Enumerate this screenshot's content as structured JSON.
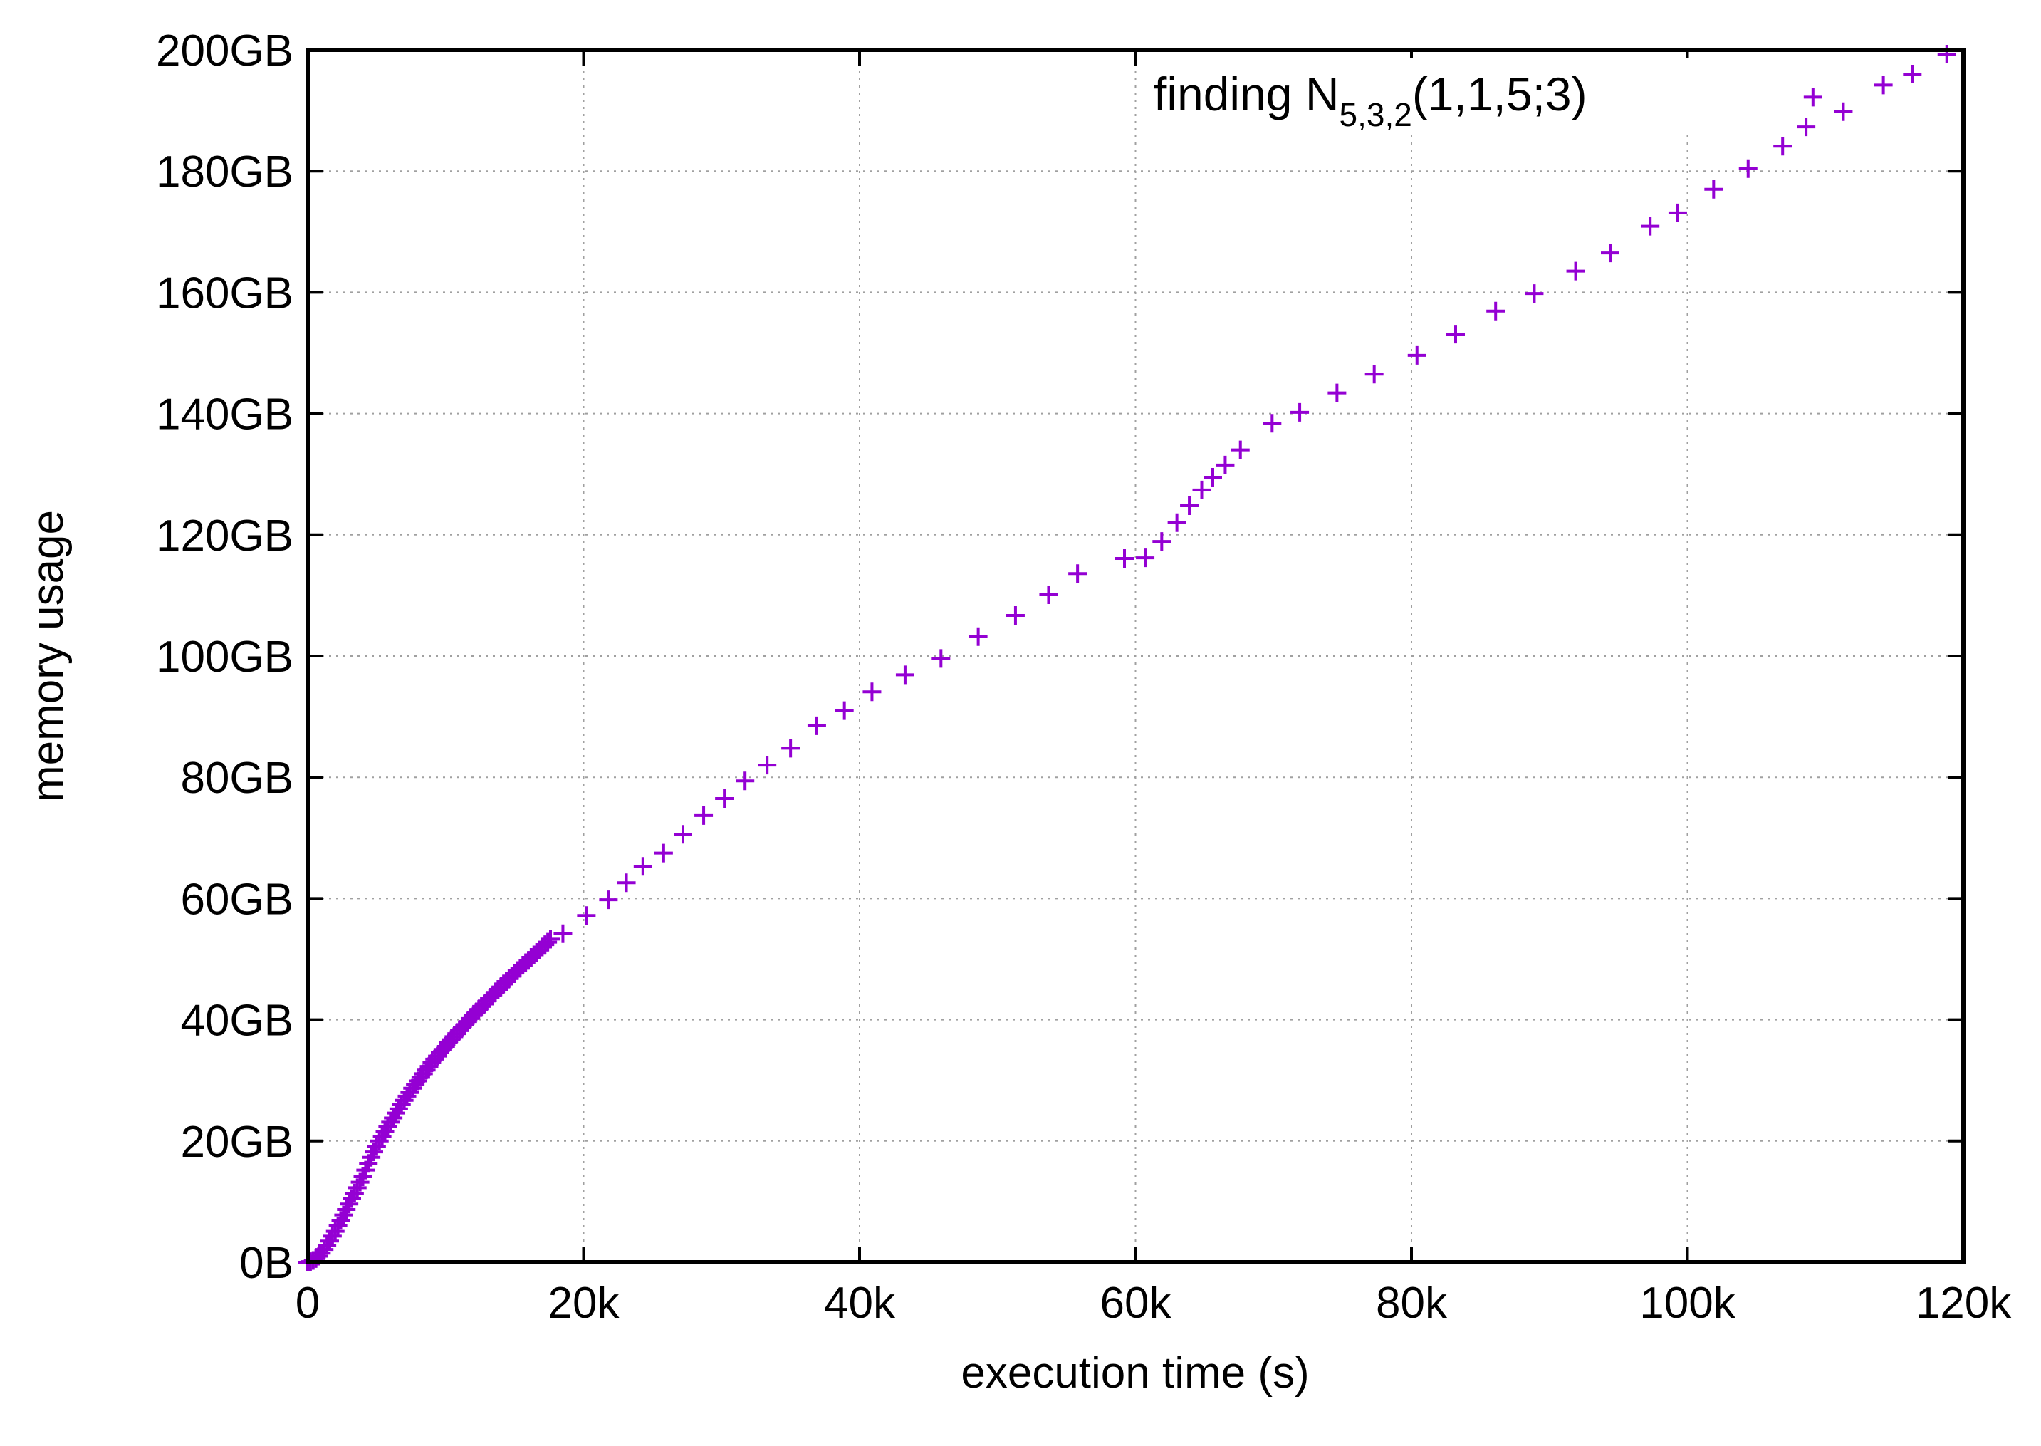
{
  "chart_data": {
    "type": "scatter",
    "title": "",
    "xlabel": "execution time (s)",
    "ylabel": "memory usage",
    "xlim": [
      0,
      120000
    ],
    "ylim": [
      0,
      200
    ],
    "x_ticks": [
      {
        "value": 0,
        "label": "0"
      },
      {
        "value": 20000,
        "label": "20k"
      },
      {
        "value": 40000,
        "label": "40k"
      },
      {
        "value": 60000,
        "label": "60k"
      },
      {
        "value": 80000,
        "label": "80k"
      },
      {
        "value": 100000,
        "label": "100k"
      },
      {
        "value": 120000,
        "label": "120k"
      }
    ],
    "y_ticks": [
      {
        "value": 0,
        "label": "0B"
      },
      {
        "value": 20,
        "label": "20GB"
      },
      {
        "value": 40,
        "label": "40GB"
      },
      {
        "value": 60,
        "label": "60GB"
      },
      {
        "value": 80,
        "label": "80GB"
      },
      {
        "value": 100,
        "label": "100GB"
      },
      {
        "value": 120,
        "label": "120GB"
      },
      {
        "value": 140,
        "label": "140GB"
      },
      {
        "value": 160,
        "label": "160GB"
      },
      {
        "value": 180,
        "label": "180GB"
      },
      {
        "value": 200,
        "label": "200GB"
      }
    ],
    "grid": true,
    "legend": {
      "position": "top-right",
      "prefix": "finding N",
      "subscript": "5,3,2",
      "suffix": "(1,1,5;3)"
    },
    "marker": "plus",
    "color": "#9400d3",
    "series": [
      {
        "name": "finding N5,3,2(1,1,5;3)",
        "x": [
          0,
          200,
          400,
          600,
          800,
          1000,
          1200,
          1400,
          1600,
          1800,
          2000,
          2200,
          2400,
          2600,
          2800,
          3000,
          3200,
          3400,
          3600,
          3800,
          4000,
          4200,
          4400,
          4600,
          4800,
          5000,
          5200,
          5400,
          5600,
          5800,
          6000,
          6200,
          6400,
          6600,
          6800,
          7000,
          7200,
          7400,
          7600,
          7800,
          8000,
          8200,
          8400,
          8600,
          8800,
          9000,
          9200,
          9400,
          9600,
          9800,
          10000,
          10200,
          10400,
          10600,
          10800,
          11000,
          11200,
          11400,
          11600,
          11800,
          12000,
          12200,
          12400,
          12600,
          12800,
          13000,
          13200,
          13400,
          13600,
          13800,
          14000,
          14200,
          14400,
          14600,
          14800,
          15000,
          15200,
          15400,
          15600,
          15800,
          16000,
          16200,
          16400,
          16600,
          16800,
          17000,
          17200,
          17400,
          17600,
          18500,
          20200,
          21800,
          23100,
          24300,
          25800,
          27200,
          28700,
          30200,
          31700,
          33300,
          35000,
          36900,
          38900,
          40900,
          43300,
          45900,
          48600,
          51300,
          53700,
          55800,
          59200,
          60700,
          61900,
          63000,
          63900,
          64800,
          65600,
          66500,
          67600,
          69900,
          71900,
          74600,
          77300,
          80400,
          83200,
          86100,
          88900,
          91900,
          94400,
          97300,
          99300,
          101900,
          104400,
          106900,
          108600,
          109100,
          111300,
          114200,
          116300,
          118800
        ],
        "y": [
          0,
          0.1,
          0.3,
          0.6,
          1.0,
          1.5,
          2.1,
          2.8,
          3.5,
          4.3,
          5.1,
          6.0,
          6.9,
          7.8,
          8.7,
          9.6,
          10.5,
          11.4,
          12.3,
          13.2,
          14.1,
          15.2,
          16.3,
          17.3,
          18.2,
          19.1,
          20.0,
          20.8,
          21.6,
          22.4,
          23.1,
          23.8,
          24.6,
          25.3,
          26.0,
          26.7,
          27.4,
          28.0,
          28.7,
          29.3,
          29.9,
          30.5,
          31.1,
          31.7,
          32.3,
          32.9,
          33.5,
          34.0,
          34.6,
          35.1,
          35.6,
          36.2,
          36.7,
          37.2,
          37.7,
          38.2,
          38.7,
          39.2,
          39.7,
          40.2,
          40.7,
          41.2,
          41.7,
          42.2,
          42.6,
          43.1,
          43.6,
          44.0,
          44.5,
          45.0,
          45.4,
          45.9,
          46.3,
          46.8,
          47.2,
          47.7,
          48.1,
          48.5,
          49.0,
          49.4,
          49.8,
          50.3,
          50.7,
          51.1,
          51.5,
          52.0,
          52.4,
          52.8,
          53.3,
          54.2,
          57.2,
          59.8,
          62.6,
          65.3,
          67.5,
          70.6,
          73.7,
          76.5,
          79.4,
          82.0,
          84.8,
          88.5,
          91.0,
          94.1,
          96.9,
          99.6,
          103.2,
          106.7,
          110.1,
          113.6,
          116.1,
          116.2,
          118.9,
          122.0,
          124.8,
          127.4,
          129.5,
          131.5,
          134.0,
          138.4,
          140.2,
          143.4,
          146.5,
          149.6,
          153.1,
          156.9,
          159.8,
          163.5,
          166.5,
          170.9,
          173.1,
          177.0,
          180.4,
          184.1,
          187.3,
          192.2,
          189.8,
          194.2,
          196.0,
          199.3
        ]
      }
    ]
  }
}
